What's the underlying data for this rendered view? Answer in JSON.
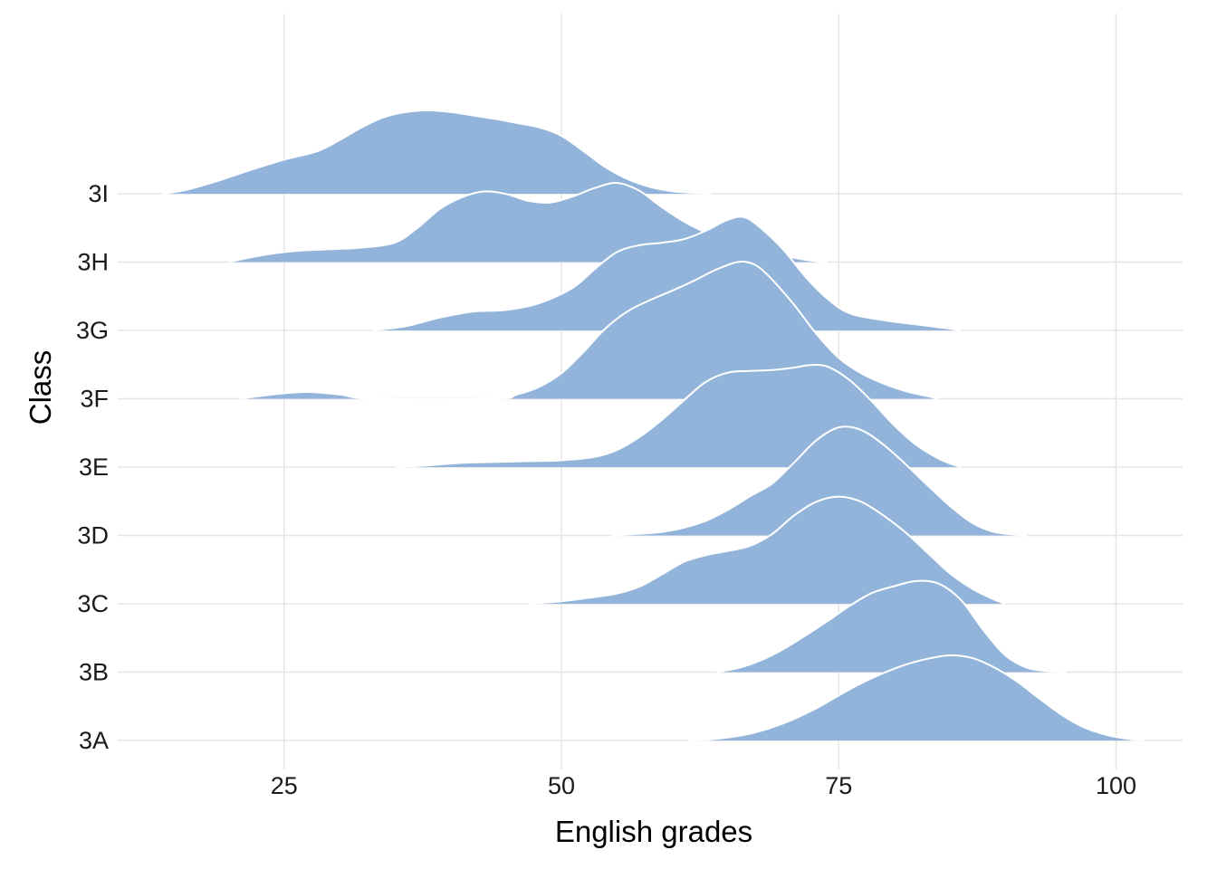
{
  "chart_data": {
    "type": "ridgeline",
    "xlabel": "English grades",
    "ylabel": "Class",
    "xlim": [
      10,
      106
    ],
    "xticks": [
      25,
      50,
      75,
      100
    ],
    "xtick_labels": [
      "25",
      "50",
      "75",
      "100"
    ],
    "categories": [
      "3A",
      "3B",
      "3C",
      "3D",
      "3E",
      "3F",
      "3G",
      "3H",
      "3I"
    ],
    "fill_color": "#92b4da",
    "outline_color": "#ffffff",
    "grid": true,
    "series": [
      {
        "name": "3A",
        "points": [
          [
            61.5,
            0
          ],
          [
            64,
            0.02
          ],
          [
            67,
            0.08
          ],
          [
            70,
            0.2
          ],
          [
            73,
            0.38
          ],
          [
            75,
            0.53
          ],
          [
            77,
            0.67
          ],
          [
            79,
            0.79
          ],
          [
            81,
            0.89
          ],
          [
            83,
            0.96
          ],
          [
            85,
            1.0
          ],
          [
            87,
            0.97
          ],
          [
            89,
            0.86
          ],
          [
            91,
            0.7
          ],
          [
            93,
            0.5
          ],
          [
            95,
            0.31
          ],
          [
            97,
            0.16
          ],
          [
            99,
            0.07
          ],
          [
            101,
            0.02
          ],
          [
            102.5,
            0
          ]
        ]
      },
      {
        "name": "3B",
        "points": [
          [
            64,
            0
          ],
          [
            66,
            0.05
          ],
          [
            68,
            0.14
          ],
          [
            70,
            0.27
          ],
          [
            72,
            0.43
          ],
          [
            74,
            0.6
          ],
          [
            76,
            0.78
          ],
          [
            78,
            0.93
          ],
          [
            80,
            1.01
          ],
          [
            82,
            1.07
          ],
          [
            84,
            1.04
          ],
          [
            86,
            0.85
          ],
          [
            88,
            0.5
          ],
          [
            90,
            0.2
          ],
          [
            92,
            0.05
          ],
          [
            94,
            0.01
          ],
          [
            95.5,
            0
          ]
        ]
      },
      {
        "name": "3C",
        "points": [
          [
            47,
            0
          ],
          [
            50,
            0.03
          ],
          [
            53,
            0.08
          ],
          [
            55,
            0.12
          ],
          [
            57,
            0.2
          ],
          [
            59,
            0.34
          ],
          [
            61,
            0.49
          ],
          [
            63,
            0.57
          ],
          [
            65,
            0.62
          ],
          [
            67,
            0.68
          ],
          [
            69,
            0.82
          ],
          [
            71,
            1.04
          ],
          [
            73,
            1.2
          ],
          [
            75,
            1.26
          ],
          [
            77,
            1.2
          ],
          [
            79,
            1.04
          ],
          [
            81,
            0.84
          ],
          [
            83,
            0.6
          ],
          [
            85,
            0.36
          ],
          [
            87,
            0.18
          ],
          [
            89,
            0.05
          ],
          [
            90,
            0
          ]
        ]
      },
      {
        "name": "3D",
        "points": [
          [
            54.5,
            0
          ],
          [
            57,
            0.02
          ],
          [
            59,
            0.04
          ],
          [
            61,
            0.09
          ],
          [
            63,
            0.17
          ],
          [
            65,
            0.3
          ],
          [
            67,
            0.46
          ],
          [
            69,
            0.61
          ],
          [
            71,
            0.86
          ],
          [
            73,
            1.12
          ],
          [
            75,
            1.27
          ],
          [
            77,
            1.24
          ],
          [
            79,
            1.07
          ],
          [
            81,
            0.84
          ],
          [
            83,
            0.59
          ],
          [
            85,
            0.35
          ],
          [
            87,
            0.15
          ],
          [
            89,
            0.04
          ],
          [
            91,
            0.01
          ],
          [
            92,
            0
          ]
        ]
      },
      {
        "name": "3E",
        "points": [
          [
            35,
            0
          ],
          [
            38,
            0.02
          ],
          [
            41,
            0.05
          ],
          [
            44,
            0.06
          ],
          [
            47,
            0.07
          ],
          [
            50,
            0.08
          ],
          [
            53,
            0.12
          ],
          [
            55,
            0.2
          ],
          [
            57,
            0.35
          ],
          [
            59,
            0.55
          ],
          [
            61,
            0.78
          ],
          [
            63,
            1.0
          ],
          [
            65,
            1.11
          ],
          [
            67,
            1.13
          ],
          [
            69,
            1.14
          ],
          [
            71,
            1.17
          ],
          [
            72.5,
            1.2
          ],
          [
            74,
            1.18
          ],
          [
            76,
            1.02
          ],
          [
            78,
            0.77
          ],
          [
            80,
            0.49
          ],
          [
            82,
            0.26
          ],
          [
            84,
            0.1
          ],
          [
            85.5,
            0.02
          ],
          [
            86,
            0
          ]
        ]
      },
      {
        "name": "3F",
        "points": [
          [
            21,
            0
          ],
          [
            24,
            0.05
          ],
          [
            27,
            0.08
          ],
          [
            30,
            0.05
          ],
          [
            33,
            0
          ],
          [
            44,
            0
          ],
          [
            46,
            0.05
          ],
          [
            48,
            0.14
          ],
          [
            50,
            0.3
          ],
          [
            52,
            0.55
          ],
          [
            54,
            0.83
          ],
          [
            56,
            1.03
          ],
          [
            58,
            1.16
          ],
          [
            60,
            1.27
          ],
          [
            62,
            1.39
          ],
          [
            64,
            1.52
          ],
          [
            66,
            1.61
          ],
          [
            67.5,
            1.57
          ],
          [
            69,
            1.4
          ],
          [
            71,
            1.1
          ],
          [
            73,
            0.76
          ],
          [
            75,
            0.48
          ],
          [
            77,
            0.3
          ],
          [
            79,
            0.18
          ],
          [
            81,
            0.09
          ],
          [
            83,
            0.03
          ],
          [
            84,
            0
          ]
        ]
      },
      {
        "name": "3G",
        "points": [
          [
            33,
            0
          ],
          [
            36,
            0.05
          ],
          [
            39,
            0.15
          ],
          [
            42,
            0.22
          ],
          [
            45,
            0.24
          ],
          [
            48,
            0.32
          ],
          [
            51,
            0.5
          ],
          [
            53,
            0.72
          ],
          [
            55,
            0.92
          ],
          [
            57,
            1.0
          ],
          [
            59,
            1.03
          ],
          [
            61,
            1.07
          ],
          [
            63,
            1.17
          ],
          [
            65,
            1.3
          ],
          [
            66.5,
            1.33
          ],
          [
            68,
            1.2
          ],
          [
            70,
            0.95
          ],
          [
            72,
            0.63
          ],
          [
            74,
            0.37
          ],
          [
            76,
            0.2
          ],
          [
            79,
            0.12
          ],
          [
            82,
            0.07
          ],
          [
            85,
            0.02
          ],
          [
            86,
            0
          ]
        ]
      },
      {
        "name": "3H",
        "points": [
          [
            20,
            0
          ],
          [
            23,
            0.08
          ],
          [
            26,
            0.13
          ],
          [
            29,
            0.15
          ],
          [
            32,
            0.17
          ],
          [
            35,
            0.23
          ],
          [
            37,
            0.4
          ],
          [
            39,
            0.62
          ],
          [
            41,
            0.76
          ],
          [
            43,
            0.83
          ],
          [
            45,
            0.8
          ],
          [
            47,
            0.72
          ],
          [
            49,
            0.7
          ],
          [
            51,
            0.77
          ],
          [
            53,
            0.87
          ],
          [
            55,
            0.93
          ],
          [
            57,
            0.84
          ],
          [
            59,
            0.65
          ],
          [
            61,
            0.48
          ],
          [
            63,
            0.35
          ],
          [
            65,
            0.27
          ],
          [
            67,
            0.2
          ],
          [
            69,
            0.12
          ],
          [
            71,
            0.05
          ],
          [
            73,
            0.01
          ],
          [
            74,
            0
          ]
        ]
      },
      {
        "name": "3I",
        "points": [
          [
            14,
            0
          ],
          [
            16,
            0.04
          ],
          [
            19,
            0.15
          ],
          [
            22,
            0.28
          ],
          [
            25,
            0.4
          ],
          [
            28,
            0.5
          ],
          [
            30,
            0.63
          ],
          [
            32,
            0.78
          ],
          [
            34,
            0.9
          ],
          [
            36,
            0.96
          ],
          [
            38,
            0.98
          ],
          [
            40,
            0.96
          ],
          [
            42,
            0.92
          ],
          [
            44,
            0.88
          ],
          [
            46,
            0.83
          ],
          [
            48,
            0.78
          ],
          [
            50,
            0.68
          ],
          [
            52,
            0.5
          ],
          [
            54,
            0.31
          ],
          [
            56,
            0.17
          ],
          [
            58,
            0.08
          ],
          [
            60,
            0.03
          ],
          [
            62,
            0.01
          ],
          [
            63.5,
            0
          ]
        ]
      }
    ]
  }
}
